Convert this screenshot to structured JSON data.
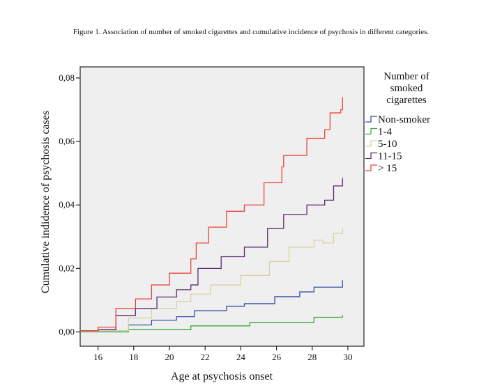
{
  "caption": "Figure 1. Association of number of smoked cigarettes and cumulative incidence of psychosis in different categories.",
  "chart_data": {
    "type": "line",
    "step": true,
    "xlabel": "Age at psychosis onset",
    "ylabel": "Cumulative indidence of psychosis cases",
    "xlim": [
      15,
      30.9
    ],
    "ylim": [
      -0.0045,
      0.0835
    ],
    "xticks": [
      16,
      18,
      20,
      22,
      24,
      26,
      28,
      30
    ],
    "xtick_labels": [
      "16",
      "18",
      "20",
      "22",
      "24",
      "26",
      "28",
      "30"
    ],
    "yticks": [
      0,
      0.02,
      0.04,
      0.06,
      0.08
    ],
    "ytick_labels": [
      "0,00",
      "0,02",
      "0,04",
      "0,06",
      "0,08"
    ],
    "grid": false,
    "legend": {
      "title": [
        "Number of",
        "smoked",
        "cigarettes"
      ],
      "placement": "right"
    },
    "background": "#f0efef",
    "series": [
      {
        "name": "Non-smoker",
        "color": "#3b4fa8",
        "x": [
          15.04,
          16,
          17.7,
          19,
          20.4,
          21.4,
          23.2,
          24.2,
          25.9,
          27.3,
          28.1,
          28.7,
          29.7
        ],
        "y": [
          0.0002,
          0.0004,
          0.0022,
          0.0037,
          0.0048,
          0.0067,
          0.0081,
          0.0089,
          0.0111,
          0.0126,
          0.0141,
          0.0141,
          0.0163
        ]
      },
      {
        "name": "1-4",
        "color": "#3da83d",
        "x": [
          15.04,
          17.7,
          21.2,
          24.5,
          28.1,
          29.7
        ],
        "y": [
          0,
          0.0007,
          0.0019,
          0.003,
          0.0046,
          0.0053
        ]
      },
      {
        "name": "5-10",
        "color": "#d6d2a6",
        "x": [
          15.04,
          16,
          17.7,
          19,
          20.4,
          21.2,
          22.3,
          24,
          25.6,
          26.7,
          28.1,
          28.6,
          29.2,
          29.7
        ],
        "y": [
          0.0002,
          0.0004,
          0.0044,
          0.0074,
          0.0096,
          0.0119,
          0.0148,
          0.0178,
          0.0222,
          0.0267,
          0.0289,
          0.028,
          0.031,
          0.0326
        ]
      },
      {
        "name": "11-15",
        "color": "#5b2a6e",
        "x": [
          15.04,
          16,
          17,
          18.1,
          19.3,
          20.4,
          21.2,
          21.6,
          22.9,
          24.2,
          25.5,
          26.4,
          27.7,
          28.7,
          29.2,
          29.7
        ],
        "y": [
          0.0004,
          0.0007,
          0.0052,
          0.0074,
          0.011,
          0.0133,
          0.0148,
          0.02,
          0.0237,
          0.0267,
          0.0326,
          0.037,
          0.04,
          0.0415,
          0.046,
          0.0485
        ]
      },
      {
        "name": "> 15",
        "color": "#e8453c",
        "x": [
          15.04,
          16,
          17,
          18.1,
          19,
          20,
          21.2,
          21.5,
          22.2,
          23.2,
          24.2,
          25.3,
          26.3,
          26.4,
          27.7,
          28.7,
          29,
          29.6,
          29.7
        ],
        "y": [
          0.0004,
          0.0015,
          0.0074,
          0.0104,
          0.0148,
          0.0185,
          0.023,
          0.028,
          0.033,
          0.038,
          0.04,
          0.047,
          0.052,
          0.0556,
          0.061,
          0.0637,
          0.069,
          0.07,
          0.074
        ]
      }
    ]
  }
}
